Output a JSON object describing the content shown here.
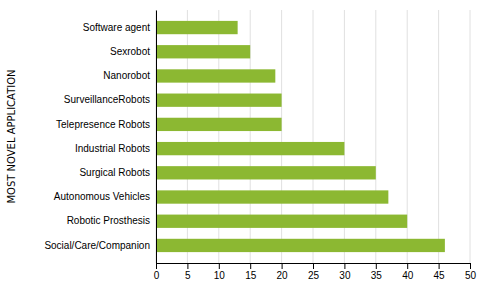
{
  "chart_data": {
    "type": "bar",
    "orientation": "horizontal",
    "ylabel": "MOST NOVEL APPLICATION",
    "categories": [
      "Social/Care/Companion",
      "Robotic Prosthesis",
      "Autonomous Vehicles",
      "Surgical Robots",
      "Industrial Robots",
      "Telepresence Robots",
      "SurveillanceRobots",
      "Nanorobot",
      "Sexrobot",
      "Software agent"
    ],
    "values": [
      46,
      40,
      37,
      35,
      30,
      20,
      20,
      19,
      15,
      13
    ],
    "color": "#8cb832",
    "xlim": [
      0,
      50
    ],
    "xticks": [
      0,
      5,
      10,
      15,
      20,
      25,
      30,
      35,
      40,
      45,
      50
    ],
    "grid": true
  }
}
